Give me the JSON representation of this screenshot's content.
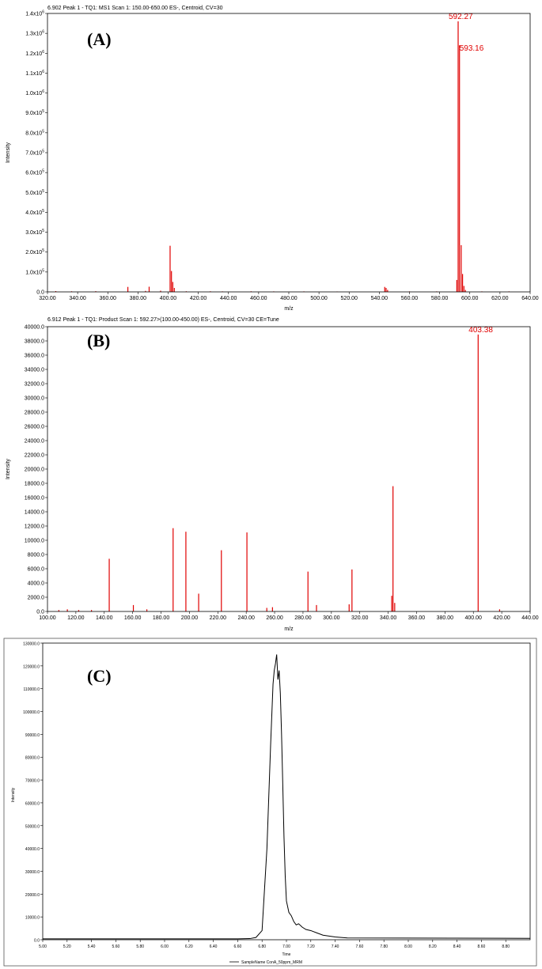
{
  "chart_data": [
    {
      "type": "bar",
      "panel_tag": "(A)",
      "header": "6.902 Peak 1 - TQ1: MS1 Scan 1: 150.00-650.00 ES-, Centroid, CV=30",
      "xlabel": "m/z",
      "ylabel": "Intensity",
      "xlim": [
        320,
        640
      ],
      "ylim": [
        0,
        1400000
      ],
      "x_ticks": [
        "320.00",
        "340.00",
        "360.00",
        "380.00",
        "400.00",
        "420.00",
        "440.00",
        "460.00",
        "480.00",
        "500.00",
        "520.00",
        "540.00",
        "560.00",
        "580.00",
        "600.00",
        "620.00",
        "640.00"
      ],
      "y_ticks": [
        {
          "base": "0.0",
          "exp": ""
        },
        {
          "base": "1.0x10",
          "exp": "5"
        },
        {
          "base": "2.0x10",
          "exp": "5"
        },
        {
          "base": "3.0x10",
          "exp": "5"
        },
        {
          "base": "4.0x10",
          "exp": "5"
        },
        {
          "base": "5.0x10",
          "exp": "5"
        },
        {
          "base": "6.0x10",
          "exp": "5"
        },
        {
          "base": "7.0x10",
          "exp": "5"
        },
        {
          "base": "8.0x10",
          "exp": "5"
        },
        {
          "base": "9.0x10",
          "exp": "5"
        },
        {
          "base": "1.0x10",
          "exp": "6"
        },
        {
          "base": "1.1x10",
          "exp": "6"
        },
        {
          "base": "1.2x10",
          "exp": "6"
        },
        {
          "base": "1.3x10",
          "exp": "6"
        },
        {
          "base": "1.4x10",
          "exp": "6"
        }
      ],
      "peaks": [
        {
          "x": 325.5,
          "y": 4000
        },
        {
          "x": 336,
          "y": 3000
        },
        {
          "x": 352,
          "y": 3500
        },
        {
          "x": 373.3,
          "y": 25000
        },
        {
          "x": 385,
          "y": 5000
        },
        {
          "x": 387.4,
          "y": 26000
        },
        {
          "x": 395,
          "y": 6000
        },
        {
          "x": 401.3,
          "y": 232000
        },
        {
          "x": 402.2,
          "y": 105000
        },
        {
          "x": 403.1,
          "y": 50000
        },
        {
          "x": 404.1,
          "y": 20000
        },
        {
          "x": 412,
          "y": 3000
        },
        {
          "x": 428,
          "y": 3000
        },
        {
          "x": 436,
          "y": 2500
        },
        {
          "x": 455,
          "y": 3000
        },
        {
          "x": 470,
          "y": 2500
        },
        {
          "x": 490,
          "y": 2500
        },
        {
          "x": 512,
          "y": 2000
        },
        {
          "x": 543.6,
          "y": 25000
        },
        {
          "x": 544.5,
          "y": 20000
        },
        {
          "x": 545.5,
          "y": 10000
        },
        {
          "x": 560,
          "y": 2500
        },
        {
          "x": 578,
          "y": 2500
        },
        {
          "x": 591.4,
          "y": 60000
        },
        {
          "x": 592.27,
          "y": 1360000
        },
        {
          "x": 593.16,
          "y": 1240000
        },
        {
          "x": 594.3,
          "y": 235000
        },
        {
          "x": 595.2,
          "y": 90000
        },
        {
          "x": 596.1,
          "y": 30000
        },
        {
          "x": 597.1,
          "y": 10000
        },
        {
          "x": 608,
          "y": 2500
        },
        {
          "x": 626,
          "y": 2500
        }
      ],
      "peak_labels": [
        {
          "text": "592.27",
          "x": 592.27,
          "y": 1360000
        },
        {
          "text": "593.16",
          "x": 593.16,
          "y": 1240000
        }
      ]
    },
    {
      "type": "bar",
      "panel_tag": "(B)",
      "header": "6.912 Peak 1 - TQ1: Product Scan 1: 592.27>(100.00-450.00) ES-, Centroid, CV=30 CE=Tune",
      "xlabel": "m/z",
      "ylabel": "Intensity",
      "xlim": [
        100,
        440
      ],
      "ylim": [
        0,
        40000
      ],
      "x_ticks": [
        "100.00",
        "120.00",
        "140.00",
        "160.00",
        "180.00",
        "200.00",
        "220.00",
        "240.00",
        "260.00",
        "280.00",
        "300.00",
        "320.00",
        "340.00",
        "360.00",
        "380.00",
        "400.00",
        "420.00",
        "440.00"
      ],
      "y_ticks": [
        "0.0",
        "2000.0",
        "4000.0",
        "6000.0",
        "8000.0",
        "10000.0",
        "12000.0",
        "14000.0",
        "16000.0",
        "18000.0",
        "20000.0",
        "22000.0",
        "24000.0",
        "26000.0",
        "28000.0",
        "30000.0",
        "32000.0",
        "34000.0",
        "36000.0",
        "38000.0",
        "40000.0"
      ],
      "peaks": [
        {
          "x": 108,
          "y": 200
        },
        {
          "x": 114,
          "y": 300
        },
        {
          "x": 122,
          "y": 200
        },
        {
          "x": 131,
          "y": 200
        },
        {
          "x": 143.5,
          "y": 7400
        },
        {
          "x": 160.5,
          "y": 900
        },
        {
          "x": 170,
          "y": 300
        },
        {
          "x": 188.5,
          "y": 11700
        },
        {
          "x": 197.5,
          "y": 11200
        },
        {
          "x": 206.5,
          "y": 2500
        },
        {
          "x": 222.5,
          "y": 8600
        },
        {
          "x": 240.5,
          "y": 11100
        },
        {
          "x": 254.5,
          "y": 500
        },
        {
          "x": 258.5,
          "y": 600
        },
        {
          "x": 283.5,
          "y": 5600
        },
        {
          "x": 289.5,
          "y": 900
        },
        {
          "x": 312.5,
          "y": 1000
        },
        {
          "x": 314.5,
          "y": 5900
        },
        {
          "x": 342.5,
          "y": 2200
        },
        {
          "x": 343.4,
          "y": 17600
        },
        {
          "x": 344.6,
          "y": 1200
        },
        {
          "x": 403.38,
          "y": 38900
        },
        {
          "x": 418.5,
          "y": 300
        }
      ],
      "peak_labels": [
        {
          "text": "403.38",
          "x": 403.38,
          "y": 38900
        }
      ]
    },
    {
      "type": "line",
      "panel_tag": "(C)",
      "xlabel": "Time",
      "ylabel": "Intensity",
      "xlim": [
        5.0,
        9.0
      ],
      "ylim": [
        0,
        130000
      ],
      "x_ticks": [
        "5.00",
        "5.20",
        "5.40",
        "5.60",
        "5.80",
        "6.00",
        "6.20",
        "6.40",
        "6.60",
        "6.80",
        "7.00",
        "7.20",
        "7.40",
        "7.60",
        "7.80",
        "8.00",
        "8.20",
        "8.40",
        "8.60",
        "8.80"
      ],
      "y_ticks": [
        "0.0",
        "10000.0",
        "20000.0",
        "30000.0",
        "40000.0",
        "50000.0",
        "60000.0",
        "70000.0",
        "80000.0",
        "90000.0",
        "100000.0",
        "110000.0",
        "120000.0",
        "130000.0"
      ],
      "legend": "SampleName ConA_50ppm_MRM",
      "x": [
        5.0,
        6.6,
        6.7,
        6.75,
        6.8,
        6.84,
        6.87,
        6.89,
        6.9,
        6.91,
        6.92,
        6.93,
        6.94,
        6.95,
        6.96,
        6.97,
        6.98,
        6.99,
        7.0,
        7.02,
        7.04,
        7.06,
        7.08,
        7.1,
        7.13,
        7.16,
        7.2,
        7.25,
        7.3,
        7.4,
        7.5,
        9.0
      ],
      "y": [
        400,
        400,
        500,
        1000,
        4000,
        40000,
        85000,
        112000,
        118000,
        121000,
        125000,
        114000,
        118000,
        108000,
        90000,
        68000,
        45000,
        28000,
        17000,
        12000,
        10500,
        8000,
        6500,
        7000,
        5500,
        4500,
        4000,
        3000,
        2000,
        1200,
        800,
        600
      ]
    }
  ]
}
